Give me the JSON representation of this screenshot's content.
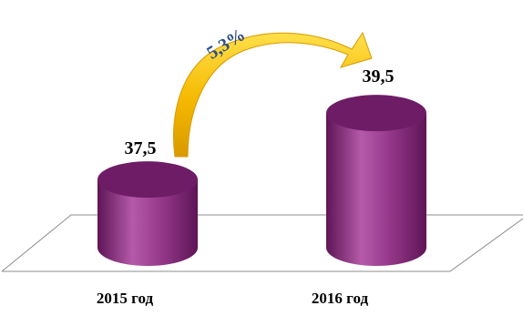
{
  "chart_data": {
    "type": "bar",
    "style": "3d-cylinder",
    "categories": [
      "2015 год",
      "2016 год"
    ],
    "values": [
      37.5,
      39.5
    ],
    "value_labels": [
      "37,5",
      "39,5"
    ],
    "annotation": {
      "text": "5,3%",
      "from": "2015 год",
      "to": "2016 год",
      "arrow": "curved"
    },
    "title": "",
    "xlabel": "",
    "ylabel": "",
    "grid": false,
    "legend": "none",
    "colors": {
      "bar": "#8a2b80",
      "bar_light": "#c061b5",
      "bar_dark": "#5e1556",
      "top": "#6e1c66",
      "arrow": "#f5b800",
      "arrow_light": "#ffe04a",
      "annotation_text": "#2f4e86",
      "floor_line": "#8c8c8c"
    }
  }
}
